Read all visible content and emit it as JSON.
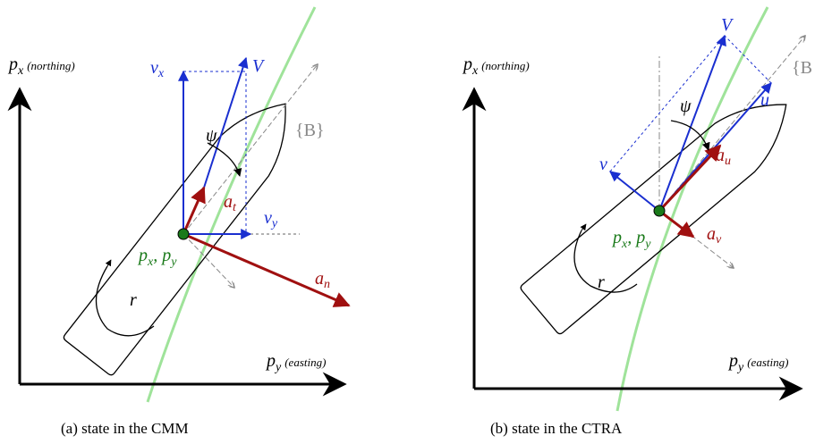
{
  "panel_a": {
    "axis_vertical": {
      "symbol": "p",
      "sub": "x",
      "note": "(northing)"
    },
    "axis_horizontal": {
      "symbol": "p",
      "sub": "y",
      "note": "(easting)"
    },
    "v_x": {
      "symbol": "v",
      "sub": "x"
    },
    "V": "V",
    "psi": "ψ",
    "frame": "{B}",
    "a_t": {
      "symbol": "a",
      "sub": "t"
    },
    "v_y": {
      "symbol": "v",
      "sub": "y"
    },
    "position": {
      "s1": "p",
      "sub1": "x",
      "sep": ",",
      "s2": "p",
      "sub2": "y"
    },
    "a_n": {
      "symbol": "a",
      "sub": "n"
    },
    "r": "r",
    "caption": "(a) state in the CMM"
  },
  "panel_b": {
    "axis_vertical": {
      "symbol": "p",
      "sub": "x",
      "note": "(northing)"
    },
    "axis_horizontal": {
      "symbol": "p",
      "sub": "y",
      "note": "(easting)"
    },
    "V": "V",
    "psi": "ψ",
    "frame": "{B",
    "u": "u",
    "v": "v",
    "a_u": {
      "symbol": "a",
      "sub": "u"
    },
    "position": {
      "s1": "p",
      "sub1": "x",
      "sep": ",",
      "s2": "p",
      "sub2": "y"
    },
    "a_v": {
      "symbol": "a",
      "sub": "v"
    },
    "r": "r",
    "caption": "(b) state in the CTRA"
  }
}
